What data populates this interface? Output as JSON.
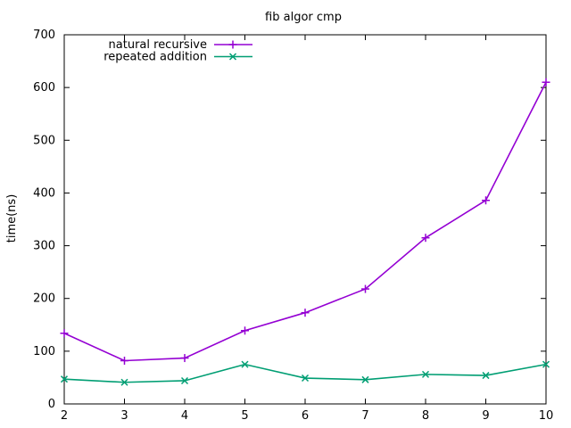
{
  "chart_data": {
    "type": "line",
    "title": "fib algor cmp",
    "xlabel": "",
    "ylabel": "time(ns)",
    "x": [
      2,
      3,
      4,
      5,
      6,
      7,
      8,
      9,
      10
    ],
    "xlim": [
      2,
      10
    ],
    "ylim": [
      0,
      700
    ],
    "xticks": [
      2,
      3,
      4,
      5,
      6,
      7,
      8,
      9,
      10
    ],
    "yticks": [
      0,
      100,
      200,
      300,
      400,
      500,
      600,
      700
    ],
    "grid": false,
    "legend_position": "top-left",
    "series": [
      {
        "name": "natural recursive",
        "color": "#9400d3",
        "marker": "plus",
        "values": [
          134,
          82,
          87,
          139,
          173,
          218,
          315,
          386,
          610
        ]
      },
      {
        "name": "repeated addition",
        "color": "#009e73",
        "marker": "cross",
        "values": [
          47,
          41,
          44,
          75,
          49,
          46,
          56,
          54,
          75
        ]
      }
    ]
  }
}
